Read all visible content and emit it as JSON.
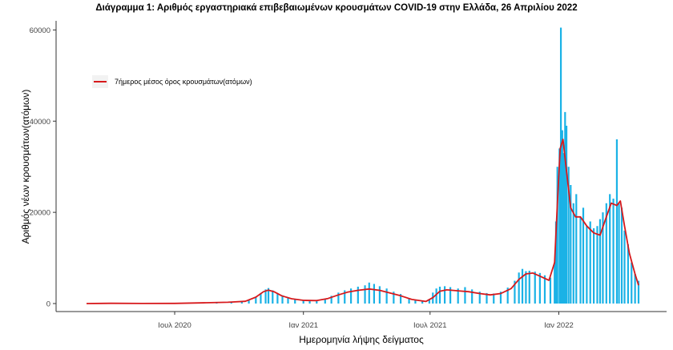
{
  "chart_data": {
    "type": "bar",
    "title": "Διάγραμμα 1: Αριθμός εργαστηριακά επιβεβαιωμένων κρουσμάτων COVID-19 στην Ελλάδα, 26 Απριλίου 2022",
    "xlabel": "Ημερομηνία λήψης δείγματος",
    "ylabel": "Αριθμός νέων κρουσμάτων(ατόμων)",
    "ylim": [
      0,
      62000
    ],
    "xlim": [
      "2020-02-26",
      "2022-04-25"
    ],
    "y_ticks": [
      0,
      20000,
      40000,
      60000
    ],
    "x_ticks": [
      {
        "date": "2020-07-01",
        "label": "Ιουλ 2020"
      },
      {
        "date": "2021-01-01",
        "label": "Ιαν 2021"
      },
      {
        "date": "2021-07-01",
        "label": "Ιουλ 2021"
      },
      {
        "date": "2022-01-01",
        "label": "Ιαν 2022"
      }
    ],
    "grid": false,
    "legend": {
      "position": "top-left",
      "entries": [
        "7ήμερος μέσος όρος κρουσμάτων(ατόμων)"
      ]
    },
    "bar_color": "#1ab2e6",
    "line_color": "#d7191c",
    "series": [
      {
        "type": "bar",
        "points": [
          [
            "2020-02-26",
            3
          ],
          [
            "2020-03-20",
            60
          ],
          [
            "2020-04-10",
            40
          ],
          [
            "2020-05-10",
            10
          ],
          [
            "2020-06-10",
            15
          ],
          [
            "2020-07-01",
            25
          ],
          [
            "2020-07-20",
            40
          ],
          [
            "2020-08-10",
            200
          ],
          [
            "2020-08-30",
            250
          ],
          [
            "2020-09-20",
            350
          ],
          [
            "2020-10-05",
            450
          ],
          [
            "2020-10-15",
            700
          ],
          [
            "2020-10-25",
            1500
          ],
          [
            "2020-11-01",
            2300
          ],
          [
            "2020-11-08",
            3100
          ],
          [
            "2020-11-12",
            3400
          ],
          [
            "2020-11-18",
            2900
          ],
          [
            "2020-11-25",
            2300
          ],
          [
            "2020-12-02",
            1800
          ],
          [
            "2020-12-10",
            1300
          ],
          [
            "2020-12-20",
            1000
          ],
          [
            "2021-01-01",
            800
          ],
          [
            "2021-01-10",
            700
          ],
          [
            "2021-01-20",
            800
          ],
          [
            "2021-02-01",
            1000
          ],
          [
            "2021-02-10",
            1700
          ],
          [
            "2021-02-20",
            2400
          ],
          [
            "2021-03-01",
            2900
          ],
          [
            "2021-03-10",
            3300
          ],
          [
            "2021-03-20",
            3700
          ],
          [
            "2021-03-30",
            4000
          ],
          [
            "2021-04-05",
            4600
          ],
          [
            "2021-04-12",
            4300
          ],
          [
            "2021-04-20",
            3800
          ],
          [
            "2021-04-30",
            3300
          ],
          [
            "2021-05-10",
            2600
          ],
          [
            "2021-05-20",
            2100
          ],
          [
            "2021-06-01",
            1100
          ],
          [
            "2021-06-10",
            700
          ],
          [
            "2021-06-20",
            550
          ],
          [
            "2021-06-30",
            1000
          ],
          [
            "2021-07-05",
            2400
          ],
          [
            "2021-07-10",
            3300
          ],
          [
            "2021-07-15",
            3700
          ],
          [
            "2021-07-22",
            3800
          ],
          [
            "2021-07-30",
            3600
          ],
          [
            "2021-08-10",
            3300
          ],
          [
            "2021-08-20",
            3600
          ],
          [
            "2021-08-30",
            3100
          ],
          [
            "2021-09-10",
            2600
          ],
          [
            "2021-09-20",
            2300
          ],
          [
            "2021-09-30",
            2200
          ],
          [
            "2021-10-10",
            2600
          ],
          [
            "2021-10-20",
            3500
          ],
          [
            "2021-10-30",
            5000
          ],
          [
            "2021-11-05",
            6800
          ],
          [
            "2021-11-10",
            7600
          ],
          [
            "2021-11-15",
            7100
          ],
          [
            "2021-11-20",
            7200
          ],
          [
            "2021-11-28",
            7000
          ],
          [
            "2021-12-05",
            6700
          ],
          [
            "2021-12-12",
            6200
          ],
          [
            "2021-12-20",
            5700
          ],
          [
            "2021-12-26",
            9000
          ],
          [
            "2021-12-28",
            18000
          ],
          [
            "2021-12-30",
            30000
          ],
          [
            "2022-01-02",
            34000
          ],
          [
            "2022-01-04",
            60500
          ],
          [
            "2022-01-06",
            38000
          ],
          [
            "2022-01-08",
            33000
          ],
          [
            "2022-01-10",
            42000
          ],
          [
            "2022-01-12",
            39000
          ],
          [
            "2022-01-15",
            30000
          ],
          [
            "2022-01-18",
            26000
          ],
          [
            "2022-01-22",
            22000
          ],
          [
            "2022-01-26",
            24000
          ],
          [
            "2022-02-01",
            19000
          ],
          [
            "2022-02-05",
            21000
          ],
          [
            "2022-02-10",
            17000
          ],
          [
            "2022-02-15",
            18000
          ],
          [
            "2022-02-20",
            16500
          ],
          [
            "2022-02-25",
            17000
          ],
          [
            "2022-03-01",
            18500
          ],
          [
            "2022-03-05",
            20000
          ],
          [
            "2022-03-10",
            22000
          ],
          [
            "2022-03-15",
            24000
          ],
          [
            "2022-03-20",
            23000
          ],
          [
            "2022-03-25",
            36000
          ],
          [
            "2022-03-28",
            22000
          ],
          [
            "2022-04-01",
            21000
          ],
          [
            "2022-04-05",
            16000
          ],
          [
            "2022-04-10",
            13000
          ],
          [
            "2022-04-15",
            9000
          ],
          [
            "2022-04-20",
            6500
          ],
          [
            "2022-04-25",
            5000
          ]
        ]
      },
      {
        "type": "line",
        "name": "7ήμερος μέσος όρος κρουσμάτων(ατόμων)",
        "points": [
          [
            "2020-02-26",
            0
          ],
          [
            "2020-04-01",
            50
          ],
          [
            "2020-05-15",
            20
          ],
          [
            "2020-07-01",
            30
          ],
          [
            "2020-08-15",
            180
          ],
          [
            "2020-09-15",
            280
          ],
          [
            "2020-10-10",
            500
          ],
          [
            "2020-10-25",
            1400
          ],
          [
            "2020-11-05",
            2600
          ],
          [
            "2020-11-12",
            2950
          ],
          [
            "2020-11-20",
            2600
          ],
          [
            "2020-12-01",
            1700
          ],
          [
            "2020-12-15",
            1050
          ],
          [
            "2021-01-01",
            700
          ],
          [
            "2021-01-20",
            650
          ],
          [
            "2021-02-05",
            1100
          ],
          [
            "2021-02-20",
            1900
          ],
          [
            "2021-03-05",
            2500
          ],
          [
            "2021-03-20",
            2900
          ],
          [
            "2021-04-05",
            3200
          ],
          [
            "2021-04-20",
            2900
          ],
          [
            "2021-05-05",
            2300
          ],
          [
            "2021-05-20",
            1700
          ],
          [
            "2021-06-05",
            900
          ],
          [
            "2021-06-25",
            450
          ],
          [
            "2021-07-05",
            1300
          ],
          [
            "2021-07-15",
            2700
          ],
          [
            "2021-07-25",
            3000
          ],
          [
            "2021-08-10",
            2800
          ],
          [
            "2021-08-25",
            2600
          ],
          [
            "2021-09-10",
            2200
          ],
          [
            "2021-09-25",
            1900
          ],
          [
            "2021-10-10",
            2200
          ],
          [
            "2021-10-25",
            3300
          ],
          [
            "2021-11-05",
            5300
          ],
          [
            "2021-11-15",
            6500
          ],
          [
            "2021-11-25",
            6700
          ],
          [
            "2021-12-05",
            6000
          ],
          [
            "2021-12-18",
            5100
          ],
          [
            "2021-12-26",
            9000
          ],
          [
            "2021-12-30",
            22000
          ],
          [
            "2022-01-03",
            34000
          ],
          [
            "2022-01-07",
            36000
          ],
          [
            "2022-01-12",
            29000
          ],
          [
            "2022-01-18",
            21000
          ],
          [
            "2022-01-25",
            19000
          ],
          [
            "2022-02-01",
            19000
          ],
          [
            "2022-02-10",
            17000
          ],
          [
            "2022-02-20",
            15500
          ],
          [
            "2022-03-01",
            15000
          ],
          [
            "2022-03-10",
            19000
          ],
          [
            "2022-03-17",
            22000
          ],
          [
            "2022-03-25",
            21500
          ],
          [
            "2022-03-30",
            22500
          ],
          [
            "2022-04-05",
            17000
          ],
          [
            "2022-04-12",
            11000
          ],
          [
            "2022-04-20",
            6500
          ],
          [
            "2022-04-25",
            4000
          ]
        ]
      }
    ]
  }
}
